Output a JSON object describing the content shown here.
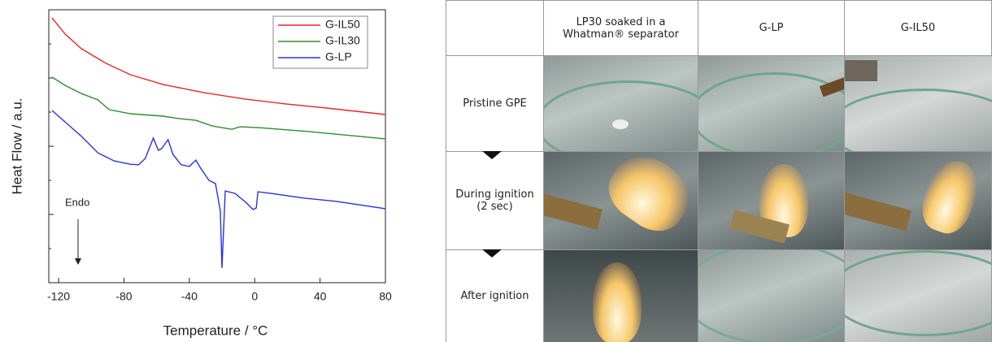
{
  "chart_data": {
    "type": "line",
    "xlabel": "Temperature / °C",
    "ylabel": "Heat Flow / a.u.",
    "annotation": "Endo",
    "xlim": [
      -126,
      80
    ],
    "xticks": [
      -120,
      -80,
      -40,
      0,
      40,
      80
    ],
    "ylim": [
      0,
      100
    ],
    "legend": "upper right",
    "series": [
      {
        "name": "G-IL50",
        "color": "#e8262a",
        "x": [
          -124,
          -116,
          -106,
          -91,
          -76,
          -56,
          -31,
          -6,
          19,
          44,
          80
        ],
        "values": [
          97.0,
          91.1,
          85.7,
          80.4,
          76.2,
          72.6,
          69.6,
          67.3,
          65.5,
          64.0,
          61.6
        ]
      },
      {
        "name": "G-IL30",
        "color": "#2e8b2e",
        "x": [
          -124,
          -116,
          -106,
          -96,
          -89,
          -76,
          -56,
          -46,
          -36,
          -26,
          -14,
          -9,
          3,
          33,
          80
        ],
        "values": [
          75.3,
          72.3,
          69.3,
          67.0,
          63.4,
          61.9,
          61.0,
          60.1,
          59.5,
          57.4,
          56.2,
          57.1,
          56.8,
          55.4,
          52.7
        ]
      },
      {
        "name": "G-LP",
        "color": "#2633e0",
        "x": [
          -124,
          -116,
          -106,
          -96,
          -86,
          -76,
          -71,
          -67,
          -62,
          -59,
          -57,
          -53,
          -50,
          -45,
          -40,
          -36,
          -33,
          -28,
          -24,
          -21,
          -20,
          -18,
          -12,
          -5,
          -1,
          1,
          2,
          10,
          30,
          50,
          80
        ],
        "values": [
          63.1,
          58.9,
          53.6,
          47.6,
          44.6,
          43.4,
          43.2,
          45.5,
          53.0,
          48.5,
          49.1,
          52.4,
          47.0,
          43.2,
          42.6,
          44.9,
          41.9,
          37.5,
          36.3,
          26.2,
          5.4,
          33.6,
          32.7,
          29.2,
          26.8,
          27.4,
          33.3,
          32.7,
          31.0,
          29.8,
          27.1
        ]
      }
    ]
  },
  "table": {
    "columns": [
      "LP30 soaked in a Whatman® separator",
      "G-LP",
      "G-IL50"
    ],
    "rows": [
      "Pristine GPE",
      "During ignition (2 sec)",
      "After ignition"
    ]
  }
}
